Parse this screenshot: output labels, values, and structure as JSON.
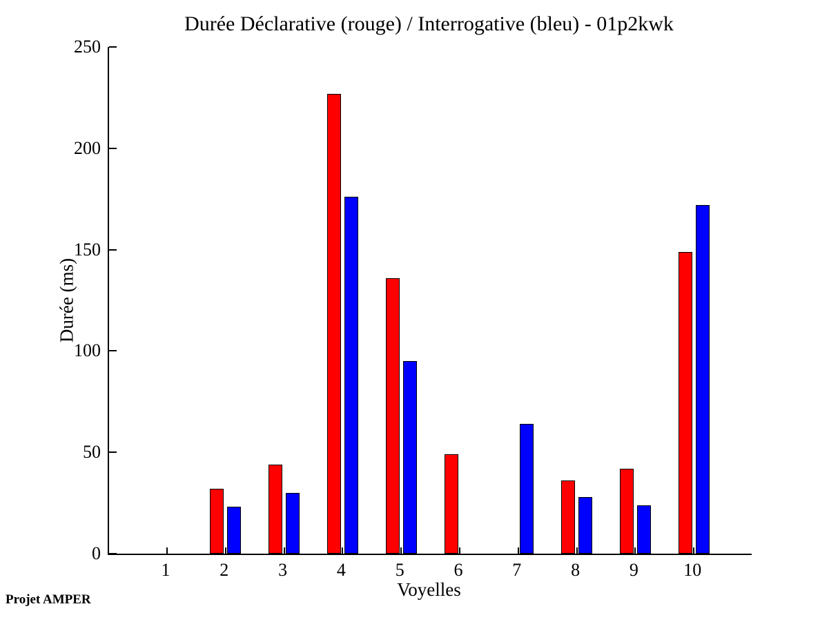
{
  "chart_data": {
    "type": "bar",
    "title": "Durée Déclarative (rouge) / Interrogative (bleu) - 01p2kwk",
    "xlabel": "Voyelles",
    "ylabel": "Durée (ms)",
    "annotation": "Projet AMPER",
    "categories": [
      "1",
      "2",
      "3",
      "4",
      "5",
      "6",
      "7",
      "8",
      "9",
      "10"
    ],
    "series": [
      {
        "name": "Déclarative",
        "color_name": "rouge",
        "color": "#ff0000",
        "values": [
          0,
          32,
          44,
          227,
          136,
          49,
          0,
          36,
          42,
          149
        ]
      },
      {
        "name": "Interrogative",
        "color_name": "bleu",
        "color": "#0000ff",
        "values": [
          0,
          23,
          30,
          176,
          95,
          0,
          64,
          28,
          24,
          172
        ]
      }
    ],
    "ylim": [
      0,
      250
    ],
    "yticks": [
      0,
      50,
      100,
      150,
      200,
      250
    ],
    "grid": false,
    "legend_position": "none (colors named in title)",
    "axis_color": "#000000",
    "background": "#ffffff"
  }
}
